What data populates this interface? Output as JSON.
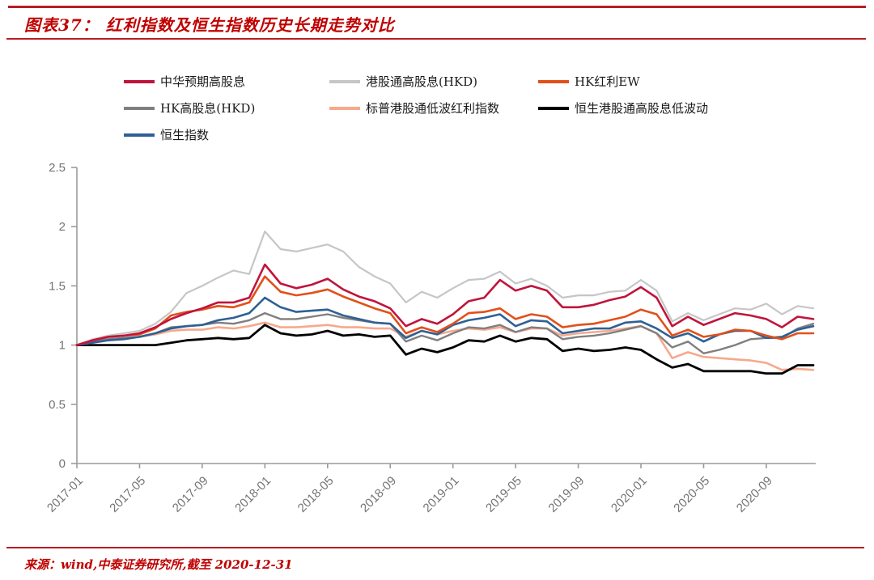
{
  "header": {
    "title": "图表37： 红利指数及恒生指数历史长期走势对比"
  },
  "footer": {
    "source": "来源：wind,中泰证券研究所,截至 2020-12-31"
  },
  "accent_color": "#b91d23",
  "chart_data": {
    "type": "line",
    "title": "红利指数及恒生指数历史长期走势对比",
    "xlabel": "",
    "ylabel": "",
    "ylim": [
      0,
      2.5
    ],
    "yticks": [
      0,
      0.5,
      1,
      1.5,
      2,
      2.5
    ],
    "grid": false,
    "legend_position": "top",
    "x": [
      "2017-01",
      "2017-02",
      "2017-03",
      "2017-04",
      "2017-05",
      "2017-06",
      "2017-07",
      "2017-08",
      "2017-09",
      "2017-10",
      "2017-11",
      "2017-12",
      "2018-01",
      "2018-02",
      "2018-03",
      "2018-04",
      "2018-05",
      "2018-06",
      "2018-07",
      "2018-08",
      "2018-09",
      "2018-10",
      "2018-11",
      "2018-12",
      "2019-01",
      "2019-02",
      "2019-03",
      "2019-04",
      "2019-05",
      "2019-06",
      "2019-07",
      "2019-08",
      "2019-09",
      "2019-10",
      "2019-11",
      "2019-12",
      "2020-01",
      "2020-02",
      "2020-03",
      "2020-04",
      "2020-05",
      "2020-06",
      "2020-07",
      "2020-08",
      "2020-09",
      "2020-10",
      "2020-11",
      "2020-12"
    ],
    "xtick_labels": [
      "2017-01",
      "2017-05",
      "2017-09",
      "2018-01",
      "2018-05",
      "2018-09",
      "2019-01",
      "2019-05",
      "2019-09",
      "2020-01",
      "2020-05",
      "2020-09"
    ],
    "series": [
      {
        "name": "中华预期高股息",
        "color": "#c0143c",
        "values": [
          1.0,
          1.04,
          1.07,
          1.08,
          1.1,
          1.15,
          1.22,
          1.27,
          1.31,
          1.36,
          1.36,
          1.4,
          1.68,
          1.52,
          1.48,
          1.51,
          1.56,
          1.47,
          1.41,
          1.37,
          1.31,
          1.16,
          1.22,
          1.18,
          1.26,
          1.37,
          1.4,
          1.55,
          1.46,
          1.5,
          1.46,
          1.32,
          1.32,
          1.34,
          1.38,
          1.41,
          1.49,
          1.4,
          1.16,
          1.24,
          1.17,
          1.22,
          1.27,
          1.25,
          1.22,
          1.15,
          1.24,
          1.22
        ]
      },
      {
        "name": "港股通高股息(HKD)",
        "color": "#c6c6c6",
        "values": [
          1.0,
          1.05,
          1.08,
          1.1,
          1.12,
          1.18,
          1.28,
          1.44,
          1.5,
          1.57,
          1.63,
          1.6,
          1.96,
          1.81,
          1.79,
          1.82,
          1.85,
          1.79,
          1.66,
          1.58,
          1.52,
          1.36,
          1.45,
          1.4,
          1.48,
          1.55,
          1.56,
          1.62,
          1.52,
          1.56,
          1.5,
          1.4,
          1.42,
          1.42,
          1.45,
          1.46,
          1.55,
          1.46,
          1.2,
          1.27,
          1.21,
          1.26,
          1.31,
          1.3,
          1.35,
          1.26,
          1.33,
          1.31
        ]
      },
      {
        "name": "HK红利EW",
        "color": "#e2501a",
        "values": [
          1.0,
          1.04,
          1.07,
          1.08,
          1.09,
          1.14,
          1.25,
          1.28,
          1.3,
          1.33,
          1.32,
          1.36,
          1.58,
          1.45,
          1.42,
          1.44,
          1.47,
          1.41,
          1.36,
          1.31,
          1.27,
          1.1,
          1.15,
          1.11,
          1.18,
          1.27,
          1.28,
          1.31,
          1.22,
          1.26,
          1.24,
          1.15,
          1.17,
          1.18,
          1.21,
          1.24,
          1.3,
          1.26,
          1.08,
          1.13,
          1.07,
          1.09,
          1.13,
          1.12,
          1.08,
          1.05,
          1.1,
          1.1
        ]
      },
      {
        "name": "HK高股息(HKD)",
        "color": "#7f7f7f",
        "values": [
          1.0,
          1.03,
          1.05,
          1.06,
          1.07,
          1.1,
          1.15,
          1.16,
          1.17,
          1.19,
          1.18,
          1.21,
          1.27,
          1.22,
          1.22,
          1.24,
          1.26,
          1.23,
          1.21,
          1.19,
          1.18,
          1.03,
          1.08,
          1.04,
          1.1,
          1.15,
          1.14,
          1.17,
          1.11,
          1.15,
          1.14,
          1.05,
          1.07,
          1.08,
          1.1,
          1.13,
          1.16,
          1.1,
          0.98,
          1.03,
          0.93,
          0.96,
          1.0,
          1.05,
          1.06,
          1.06,
          1.14,
          1.18
        ]
      },
      {
        "name": "标普港股通低波红利指数",
        "color": "#f6a98c",
        "values": [
          1.0,
          1.03,
          1.05,
          1.06,
          1.07,
          1.09,
          1.12,
          1.13,
          1.13,
          1.15,
          1.14,
          1.16,
          1.19,
          1.15,
          1.15,
          1.16,
          1.17,
          1.15,
          1.15,
          1.14,
          1.14,
          1.07,
          1.12,
          1.09,
          1.12,
          1.14,
          1.13,
          1.15,
          1.11,
          1.14,
          1.14,
          1.08,
          1.1,
          1.11,
          1.12,
          1.14,
          1.16,
          1.1,
          0.89,
          0.94,
          0.9,
          0.89,
          0.88,
          0.87,
          0.85,
          0.79,
          0.8,
          0.79
        ]
      },
      {
        "name": "恒生港股通高股息低波动",
        "color": "#000000",
        "values": [
          1.0,
          1.0,
          1.0,
          1.0,
          1.0,
          1.0,
          1.02,
          1.04,
          1.05,
          1.06,
          1.05,
          1.06,
          1.17,
          1.1,
          1.08,
          1.09,
          1.12,
          1.08,
          1.09,
          1.07,
          1.08,
          0.92,
          0.97,
          0.94,
          0.98,
          1.04,
          1.03,
          1.08,
          1.03,
          1.06,
          1.05,
          0.95,
          0.97,
          0.95,
          0.96,
          0.98,
          0.96,
          0.88,
          0.81,
          0.84,
          0.78,
          0.78,
          0.78,
          0.78,
          0.76,
          0.76,
          0.83,
          0.83
        ]
      },
      {
        "name": "恒生指数",
        "color": "#2e6095",
        "values": [
          1.0,
          1.02,
          1.04,
          1.05,
          1.07,
          1.1,
          1.14,
          1.16,
          1.17,
          1.21,
          1.23,
          1.27,
          1.4,
          1.32,
          1.28,
          1.29,
          1.3,
          1.25,
          1.22,
          1.19,
          1.18,
          1.06,
          1.12,
          1.09,
          1.17,
          1.21,
          1.23,
          1.26,
          1.16,
          1.21,
          1.2,
          1.1,
          1.12,
          1.14,
          1.14,
          1.19,
          1.2,
          1.14,
          1.06,
          1.1,
          1.03,
          1.09,
          1.12,
          1.12,
          1.06,
          1.07,
          1.13,
          1.16
        ]
      }
    ]
  }
}
